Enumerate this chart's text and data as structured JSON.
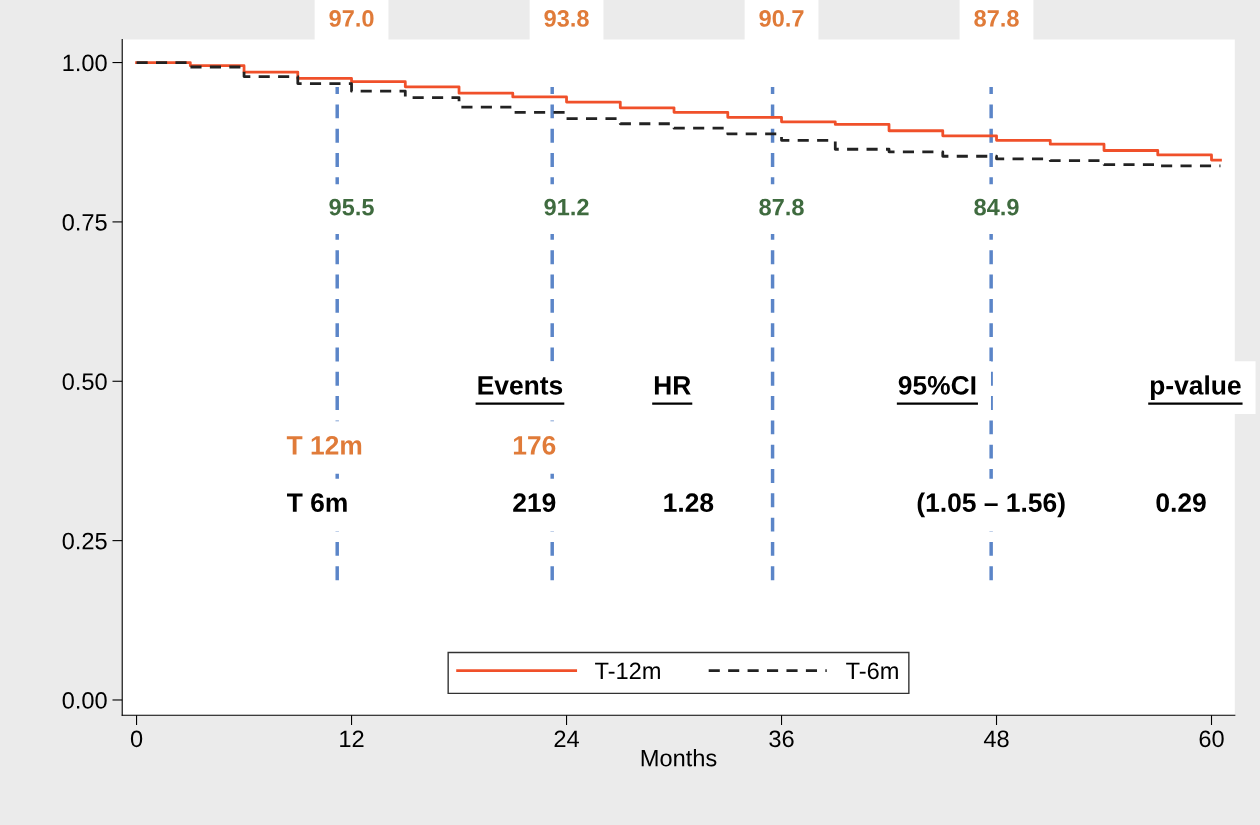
{
  "chart_data": {
    "type": "step",
    "xlabel": "Months",
    "xlim": [
      -0.8,
      61.3
    ],
    "ylim": [
      -0.024,
      1.036
    ],
    "xticks": [
      0,
      12,
      24,
      36,
      48,
      60
    ],
    "yticks": [
      {
        "value": 0,
        "label": "0.00"
      },
      {
        "value": 0.25,
        "label": "0.25"
      },
      {
        "value": 0.5,
        "label": "0.50"
      },
      {
        "value": 0.75,
        "label": "0.75"
      },
      {
        "value": 1,
        "label": "1.00"
      }
    ],
    "x": [
      0,
      3,
      6,
      9,
      12,
      15,
      18,
      21,
      24,
      27,
      30,
      33,
      36,
      39,
      42,
      45,
      48,
      51,
      54,
      57,
      60,
      60.5
    ],
    "series": [
      {
        "name": "T-12m",
        "color": "#f0502a",
        "line_style": "solid",
        "values": [
          1.0,
          0.995,
          0.985,
          0.975,
          0.97,
          0.962,
          0.952,
          0.946,
          0.938,
          0.929,
          0.922,
          0.914,
          0.907,
          0.903,
          0.893,
          0.885,
          0.878,
          0.872,
          0.862,
          0.855,
          0.847,
          0.847
        ]
      },
      {
        "name": "T-6m",
        "color": "#222222",
        "line_style": "dashed",
        "values": [
          1.0,
          0.993,
          0.978,
          0.967,
          0.955,
          0.945,
          0.93,
          0.922,
          0.912,
          0.904,
          0.897,
          0.888,
          0.878,
          0.864,
          0.86,
          0.853,
          0.849,
          0.846,
          0.84,
          0.838,
          0.838,
          0.838
        ]
      }
    ],
    "ref_lines": [
      {
        "axis": "x",
        "value": 11.2,
        "color": "#5b85c8",
        "line_style": "dashed"
      },
      {
        "axis": "x",
        "value": 23.2,
        "color": "#5b85c8",
        "line_style": "dashed"
      },
      {
        "axis": "x",
        "value": 35.5,
        "color": "#5b85c8",
        "line_style": "dashed"
      },
      {
        "axis": "x",
        "value": 47.7,
        "color": "#5b85c8",
        "line_style": "dashed"
      }
    ],
    "annotations": [
      "97.0",
      "93.8",
      "90.7",
      "87.8",
      "95.5",
      "91.2",
      "87.8",
      "84.9",
      "Events",
      "HR",
      "95%CI",
      "p-value",
      "T 12m",
      "176",
      "T 6m",
      "219",
      "1.28",
      "(1.05 – 1.56)",
      "0.29"
    ],
    "legend": "bottom",
    "grid": false
  }
}
